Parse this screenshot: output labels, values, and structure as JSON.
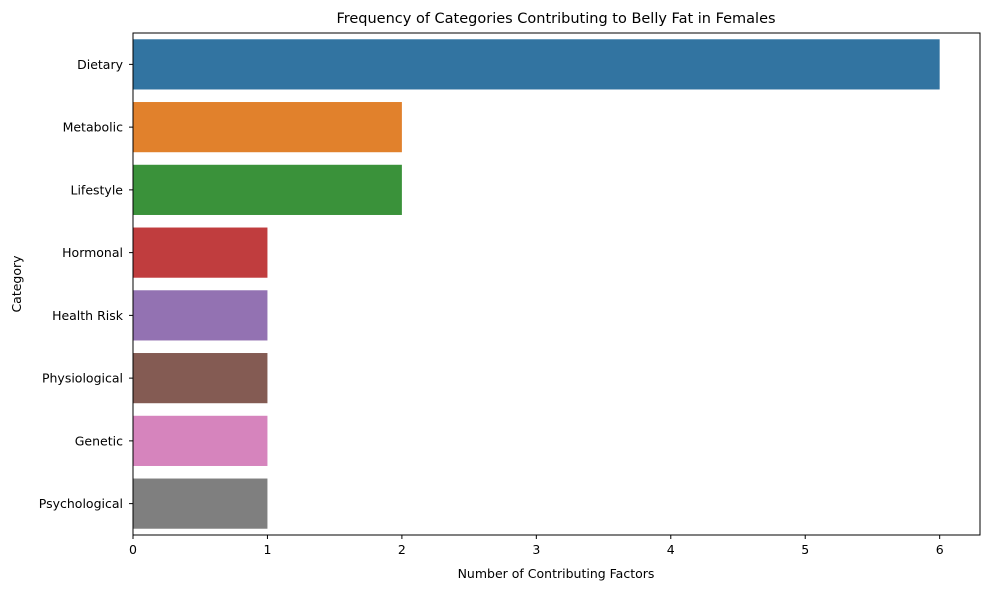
{
  "chart_data": {
    "type": "bar",
    "orientation": "horizontal",
    "title": "Frequency of Categories Contributing to Belly Fat in Females",
    "xlabel": "Number of Contributing Factors",
    "ylabel": "Category",
    "categories": [
      "Dietary",
      "Metabolic",
      "Lifestyle",
      "Hormonal",
      "Health Risk",
      "Physiological",
      "Genetic",
      "Psychological"
    ],
    "values": [
      6,
      2,
      2,
      1,
      1,
      1,
      1,
      1
    ],
    "colors": [
      "#3274a1",
      "#e1812c",
      "#3a923a",
      "#c03d3e",
      "#9372b2",
      "#845b53",
      "#d684bd",
      "#7f7f7f"
    ],
    "xlim": [
      0,
      6.3
    ],
    "xticks": [
      0,
      1,
      2,
      3,
      4,
      5,
      6
    ],
    "xtick_labels": [
      "0",
      "1",
      "2",
      "3",
      "4",
      "5",
      "6"
    ],
    "grid": false,
    "legend": false
  }
}
